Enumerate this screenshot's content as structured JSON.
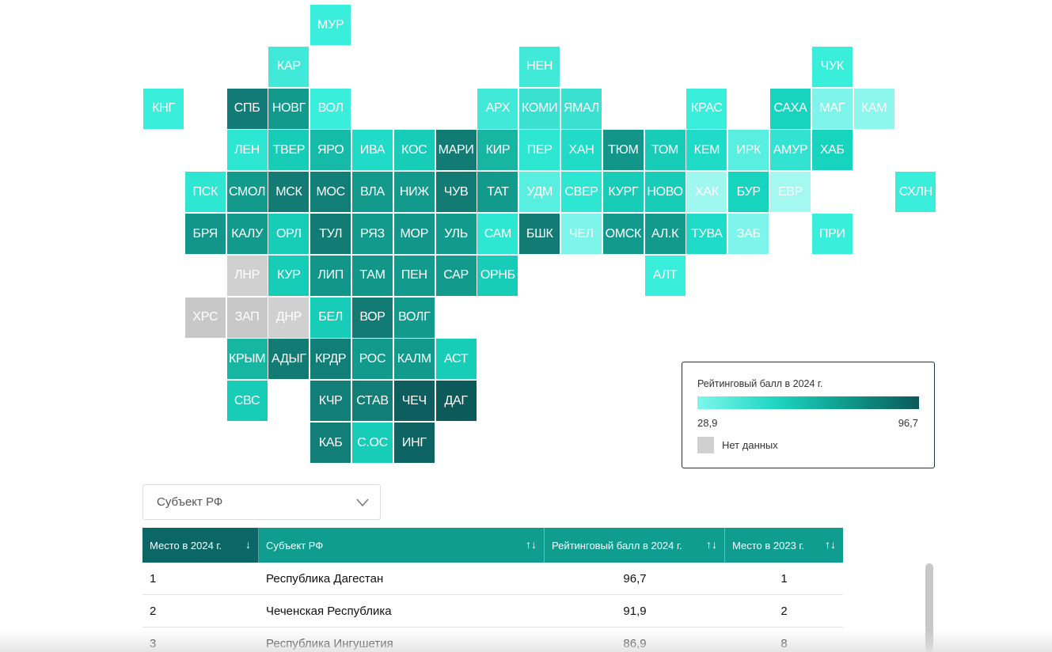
{
  "map": {
    "regions": [
      {
        "label": "МУР",
        "col": 4,
        "row": 0,
        "color": "#3aeedc"
      },
      {
        "label": "КАР",
        "col": 3,
        "row": 1,
        "color": "#40e9d8"
      },
      {
        "label": "НЕН",
        "col": 9,
        "row": 1,
        "color": "#40e9d8"
      },
      {
        "label": "ЧУК",
        "col": 16,
        "row": 1,
        "color": "#3aeedc"
      },
      {
        "label": "КНГ",
        "col": 0,
        "row": 2,
        "color": "#3aeedc"
      },
      {
        "label": "СПБ",
        "col": 2,
        "row": 2,
        "color": "#127b78"
      },
      {
        "label": "НОВГ",
        "col": 3,
        "row": 2,
        "color": "#129b8d"
      },
      {
        "label": "ВОЛ",
        "col": 4,
        "row": 2,
        "color": "#3aeedc"
      },
      {
        "label": "АРХ",
        "col": 8,
        "row": 2,
        "color": "#40e9d8"
      },
      {
        "label": "КОМИ",
        "col": 9,
        "row": 2,
        "color": "#3ae0d0"
      },
      {
        "label": "ЯМАЛ",
        "col": 10,
        "row": 2,
        "color": "#3ae0d0"
      },
      {
        "label": "КРАС",
        "col": 13,
        "row": 2,
        "color": "#3aeedc"
      },
      {
        "label": "САХА",
        "col": 15,
        "row": 2,
        "color": "#17d4bf"
      },
      {
        "label": "МАГ",
        "col": 16,
        "row": 2,
        "color": "#7ef5ea"
      },
      {
        "label": "КАМ",
        "col": 17,
        "row": 2,
        "color": "#8df6ed"
      },
      {
        "label": "ЛЕН",
        "col": 2,
        "row": 3,
        "color": "#2ee7d3"
      },
      {
        "label": "ТВЕР",
        "col": 3,
        "row": 3,
        "color": "#17cdb7"
      },
      {
        "label": "ЯРО",
        "col": 4,
        "row": 3,
        "color": "#16bba8"
      },
      {
        "label": "ИВА",
        "col": 5,
        "row": 3,
        "color": "#1fdbc7"
      },
      {
        "label": "КОС",
        "col": 6,
        "row": 3,
        "color": "#17cdb8"
      },
      {
        "label": "МАРИ",
        "col": 7,
        "row": 3,
        "color": "#117b74"
      },
      {
        "label": "КИР",
        "col": 8,
        "row": 3,
        "color": "#16b6a3"
      },
      {
        "label": "ПЕР",
        "col": 9,
        "row": 3,
        "color": "#2ee7d3"
      },
      {
        "label": "ХАН",
        "col": 10,
        "row": 3,
        "color": "#1fdbc7"
      },
      {
        "label": "ТЮМ",
        "col": 11,
        "row": 3,
        "color": "#13968a"
      },
      {
        "label": "ТОМ",
        "col": 12,
        "row": 3,
        "color": "#17cdb7"
      },
      {
        "label": "КЕМ",
        "col": 13,
        "row": 3,
        "color": "#1fdbc7"
      },
      {
        "label": "ИРК",
        "col": 14,
        "row": 3,
        "color": "#59efe0"
      },
      {
        "label": "АМУР",
        "col": 15,
        "row": 3,
        "color": "#31e3d0"
      },
      {
        "label": "ХАБ",
        "col": 16,
        "row": 3,
        "color": "#17d4bf"
      },
      {
        "label": "ПСК",
        "col": 1,
        "row": 4,
        "color": "#2ee7d3"
      },
      {
        "label": "СМОЛ",
        "col": 2,
        "row": 4,
        "color": "#129b8d"
      },
      {
        "label": "МСК",
        "col": 3,
        "row": 4,
        "color": "#117b74"
      },
      {
        "label": "МОС",
        "col": 4,
        "row": 4,
        "color": "#127e78"
      },
      {
        "label": "ВЛА",
        "col": 5,
        "row": 4,
        "color": "#129b8d"
      },
      {
        "label": "НИЖ",
        "col": 6,
        "row": 4,
        "color": "#129b8d"
      },
      {
        "label": "ЧУВ",
        "col": 7,
        "row": 4,
        "color": "#117b74"
      },
      {
        "label": "ТАТ",
        "col": 8,
        "row": 4,
        "color": "#129b8d"
      },
      {
        "label": "УДМ",
        "col": 9,
        "row": 4,
        "color": "#59efe0"
      },
      {
        "label": "СВЕР",
        "col": 10,
        "row": 4,
        "color": "#2ee7d3"
      },
      {
        "label": "КУРГ",
        "col": 11,
        "row": 4,
        "color": "#17cdb8"
      },
      {
        "label": "НОВО",
        "col": 12,
        "row": 4,
        "color": "#17cdb8"
      },
      {
        "label": "ХАК",
        "col": 13,
        "row": 4,
        "color": "#9ef8ef"
      },
      {
        "label": "БУР",
        "col": 14,
        "row": 4,
        "color": "#17d4bf"
      },
      {
        "label": "ЕВР",
        "col": 15,
        "row": 4,
        "color": "#a3f8f0"
      },
      {
        "label": "СХЛН",
        "col": 18,
        "row": 4,
        "color": "#3aeedc"
      },
      {
        "label": "БРЯ",
        "col": 1,
        "row": 5,
        "color": "#13968a"
      },
      {
        "label": "КАЛУ",
        "col": 2,
        "row": 5,
        "color": "#129b8d"
      },
      {
        "label": "ОРЛ",
        "col": 3,
        "row": 5,
        "color": "#17cdb7"
      },
      {
        "label": "ТУЛ",
        "col": 4,
        "row": 5,
        "color": "#117b74"
      },
      {
        "label": "РЯЗ",
        "col": 5,
        "row": 5,
        "color": "#129b8d"
      },
      {
        "label": "МОР",
        "col": 6,
        "row": 5,
        "color": "#13968a"
      },
      {
        "label": "УЛЬ",
        "col": 7,
        "row": 5,
        "color": "#129b8d"
      },
      {
        "label": "САМ",
        "col": 8,
        "row": 5,
        "color": "#2ee7d3"
      },
      {
        "label": "БШК",
        "col": 9,
        "row": 5,
        "color": "#117b74"
      },
      {
        "label": "ЧЕЛ",
        "col": 10,
        "row": 5,
        "color": "#7ef5ea"
      },
      {
        "label": "ОМСК",
        "col": 11,
        "row": 5,
        "color": "#129b8d"
      },
      {
        "label": "АЛ.К",
        "col": 12,
        "row": 5,
        "color": "#129b8d"
      },
      {
        "label": "ТУВА",
        "col": 13,
        "row": 5,
        "color": "#1fdbc7"
      },
      {
        "label": "ЗАБ",
        "col": 14,
        "row": 5,
        "color": "#7ef5ea"
      },
      {
        "label": "ПРИ",
        "col": 16,
        "row": 5,
        "color": "#3aeedc"
      },
      {
        "label": "ЛНР",
        "col": 2,
        "row": 6,
        "color": "#d0d0d0"
      },
      {
        "label": "КУР",
        "col": 3,
        "row": 6,
        "color": "#17cdb8"
      },
      {
        "label": "ЛИП",
        "col": 4,
        "row": 6,
        "color": "#13968a"
      },
      {
        "label": "ТАМ",
        "col": 5,
        "row": 6,
        "color": "#13968a"
      },
      {
        "label": "ПЕН",
        "col": 6,
        "row": 6,
        "color": "#129b8d"
      },
      {
        "label": "САР",
        "col": 7,
        "row": 6,
        "color": "#129b8d"
      },
      {
        "label": "ОРНБ",
        "col": 8,
        "row": 6,
        "color": "#17cdb8"
      },
      {
        "label": "АЛТ",
        "col": 12,
        "row": 6,
        "color": "#3aeedc"
      },
      {
        "label": "ХРС",
        "col": 1,
        "row": 7,
        "color": "#c8c8c8"
      },
      {
        "label": "ЗАП",
        "col": 2,
        "row": 7,
        "color": "#c8c8c8"
      },
      {
        "label": "ДНР",
        "col": 3,
        "row": 7,
        "color": "#d0d0d0"
      },
      {
        "label": "БЕЛ",
        "col": 4,
        "row": 7,
        "color": "#17cdb8"
      },
      {
        "label": "ВОР",
        "col": 5,
        "row": 7,
        "color": "#117b74"
      },
      {
        "label": "ВОЛГ",
        "col": 6,
        "row": 7,
        "color": "#129b8d"
      },
      {
        "label": "КРЫМ",
        "col": 2,
        "row": 8,
        "color": "#16b6a3"
      },
      {
        "label": "АДЫГ",
        "col": 3,
        "row": 8,
        "color": "#117b74"
      },
      {
        "label": "КРДР",
        "col": 4,
        "row": 8,
        "color": "#127e78"
      },
      {
        "label": "РОС",
        "col": 5,
        "row": 8,
        "color": "#129b8d"
      },
      {
        "label": "КАЛМ",
        "col": 6,
        "row": 8,
        "color": "#129b8d"
      },
      {
        "label": "АСТ",
        "col": 7,
        "row": 8,
        "color": "#17cdb8"
      },
      {
        "label": "СВС",
        "col": 2,
        "row": 9,
        "color": "#17cdb8"
      },
      {
        "label": "КЧР",
        "col": 4,
        "row": 9,
        "color": "#127e78"
      },
      {
        "label": "СТАВ",
        "col": 5,
        "row": 9,
        "color": "#127e78"
      },
      {
        "label": "ЧЕЧ",
        "col": 6,
        "row": 9,
        "color": "#0e5e5f"
      },
      {
        "label": "ДАГ",
        "col": 7,
        "row": 9,
        "color": "#0c5a5a"
      },
      {
        "label": "КАБ",
        "col": 4,
        "row": 10,
        "color": "#127e78"
      },
      {
        "label": "С.ОС",
        "col": 5,
        "row": 10,
        "color": "#17cdb8"
      },
      {
        "label": "ИНГ",
        "col": 6,
        "row": 10,
        "color": "#0e6462"
      }
    ]
  },
  "legend": {
    "title": "Рейтинговый балл в 2024 г.",
    "min": "28,9",
    "max": "96,7",
    "no_data": "Нет данных",
    "min_color": "#7df7ec",
    "max_color": "#0c5a5a",
    "no_data_color": "#d0d0d0"
  },
  "filter": {
    "placeholder": "Субъект РФ",
    "icon": "chevron-down-icon"
  },
  "table": {
    "columns": [
      {
        "label": "Место в 2024 г.",
        "sort": "↓",
        "active": true
      },
      {
        "label": "Субъект РФ",
        "sort": "↑↓",
        "active": false
      },
      {
        "label": "Рейтинговый балл в 2024 г.",
        "sort": "↑↓",
        "active": false
      },
      {
        "label": "Место в 2023 г.",
        "sort": "↑↓",
        "active": false
      }
    ],
    "rows": [
      {
        "rank": "1",
        "region": "Республика Дагестан",
        "score": "96,7",
        "prev": "1"
      },
      {
        "rank": "2",
        "region": "Чеченская Республика",
        "score": "91,9",
        "prev": "2"
      },
      {
        "rank": "3",
        "region": "Республика Ингушетия",
        "score": "86,9",
        "prev": "8"
      }
    ]
  },
  "colors": {
    "header_bg": "#0e9d8f",
    "header_active_bg": "#0b6766"
  }
}
